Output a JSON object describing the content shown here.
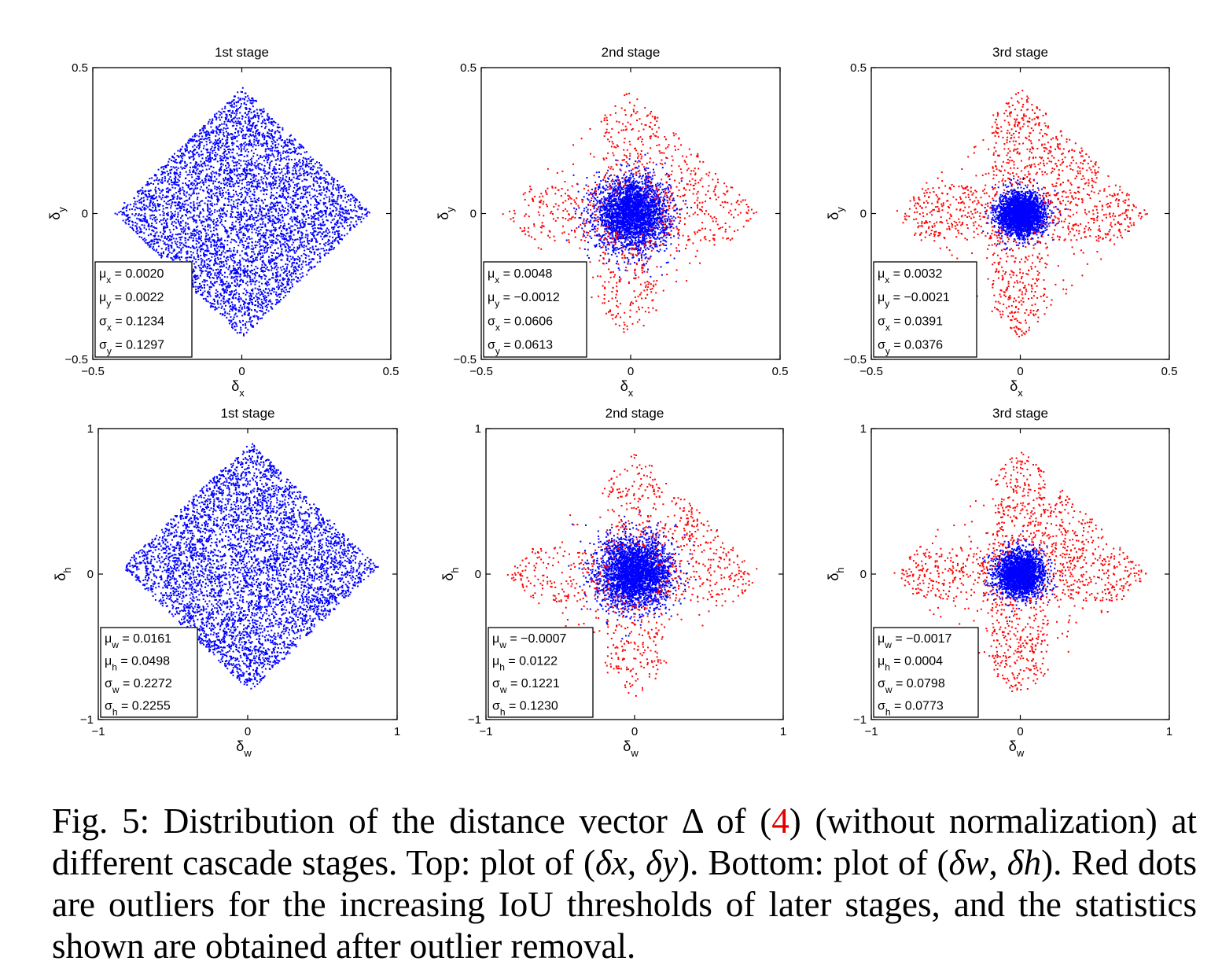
{
  "figure": {
    "colors": {
      "inlier": "#0000ff",
      "outlier": "#ff0000",
      "axes": "#000000",
      "background": "#ffffff"
    },
    "panels": [
      {
        "id": "xy-stage1",
        "title": "1st stage",
        "xlabel_symbol": "δ",
        "xlabel_sub": "x",
        "ylabel_symbol": "δ",
        "ylabel_sub": "y",
        "xlim": [
          -0.5,
          0.5
        ],
        "ylim": [
          -0.5,
          0.5
        ],
        "xticks": [
          "−0.5",
          "0",
          "0.5"
        ],
        "yticks": [
          "0.5",
          "0",
          "−0.5"
        ],
        "stats": [
          {
            "sym": "μ",
            "sub": "x",
            "text": " = 0.0020"
          },
          {
            "sym": "μ",
            "sub": "y",
            "text": " = 0.0022"
          },
          {
            "sym": "σ",
            "sub": "x",
            "text": " = 0.1234"
          },
          {
            "sym": "σ",
            "sub": "y",
            "text": " = 0.1297"
          }
        ]
      },
      {
        "id": "xy-stage2",
        "title": "2nd stage",
        "xlabel_symbol": "δ",
        "xlabel_sub": "x",
        "ylabel_symbol": "δ",
        "ylabel_sub": "y",
        "xlim": [
          -0.5,
          0.5
        ],
        "ylim": [
          -0.5,
          0.5
        ],
        "xticks": [
          "−0.5",
          "0",
          "0.5"
        ],
        "yticks": [
          "0.5",
          "0",
          "−0.5"
        ],
        "stats": [
          {
            "sym": "μ",
            "sub": "x",
            "text": " = 0.0048"
          },
          {
            "sym": "μ",
            "sub": "y",
            "text": " = −0.0012"
          },
          {
            "sym": "σ",
            "sub": "x",
            "text": " = 0.0606"
          },
          {
            "sym": "σ",
            "sub": "y",
            "text": " = 0.0613"
          }
        ]
      },
      {
        "id": "xy-stage3",
        "title": "3rd stage",
        "xlabel_symbol": "δ",
        "xlabel_sub": "x",
        "ylabel_symbol": "δ",
        "ylabel_sub": "y",
        "xlim": [
          -0.5,
          0.5
        ],
        "ylim": [
          -0.5,
          0.5
        ],
        "xticks": [
          "−0.5",
          "0",
          "0.5"
        ],
        "yticks": [
          "0.5",
          "0",
          "−0.5"
        ],
        "stats": [
          {
            "sym": "μ",
            "sub": "x",
            "text": " = 0.0032"
          },
          {
            "sym": "μ",
            "sub": "y",
            "text": " = −0.0021"
          },
          {
            "sym": "σ",
            "sub": "x",
            "text": " = 0.0391"
          },
          {
            "sym": "σ",
            "sub": "y",
            "text": " = 0.0376"
          }
        ]
      },
      {
        "id": "wh-stage1",
        "title": "1st stage",
        "xlabel_symbol": "δ",
        "xlabel_sub": "w",
        "ylabel_symbol": "δ",
        "ylabel_sub": "h",
        "xlim": [
          -1,
          1
        ],
        "ylim": [
          -1,
          1
        ],
        "xticks": [
          "−1",
          "0",
          "1"
        ],
        "yticks": [
          "1",
          "0",
          "−1"
        ],
        "stats": [
          {
            "sym": "μ",
            "sub": "w",
            "text": " = 0.0161"
          },
          {
            "sym": "μ",
            "sub": "h",
            "text": " = 0.0498"
          },
          {
            "sym": "σ",
            "sub": "w",
            "text": " = 0.2272"
          },
          {
            "sym": "σ",
            "sub": "h",
            "text": " = 0.2255"
          }
        ]
      },
      {
        "id": "wh-stage2",
        "title": "2nd stage",
        "xlabel_symbol": "δ",
        "xlabel_sub": "w",
        "ylabel_symbol": "δ",
        "ylabel_sub": "h",
        "xlim": [
          -1,
          1
        ],
        "ylim": [
          -1,
          1
        ],
        "xticks": [
          "−1",
          "0",
          "1"
        ],
        "yticks": [
          "1",
          "0",
          "−1"
        ],
        "stats": [
          {
            "sym": "μ",
            "sub": "w",
            "text": " = −0.0007"
          },
          {
            "sym": "μ",
            "sub": "h",
            "text": " = 0.0122"
          },
          {
            "sym": "σ",
            "sub": "w",
            "text": " = 0.1221"
          },
          {
            "sym": "σ",
            "sub": "h",
            "text": " = 0.1230"
          }
        ]
      },
      {
        "id": "wh-stage3",
        "title": "3rd stage",
        "xlabel_symbol": "δ",
        "xlabel_sub": "w",
        "ylabel_symbol": "δ",
        "ylabel_sub": "h",
        "xlim": [
          -1,
          1
        ],
        "ylim": [
          -1,
          1
        ],
        "xticks": [
          "−1",
          "0",
          "1"
        ],
        "yticks": [
          "1",
          "0",
          "−1"
        ],
        "stats": [
          {
            "sym": "μ",
            "sub": "w",
            "text": " = −0.0017"
          },
          {
            "sym": "μ",
            "sub": "h",
            "text": " = 0.0004"
          },
          {
            "sym": "σ",
            "sub": "w",
            "text": " = 0.0798"
          },
          {
            "sym": "σ",
            "sub": "h",
            "text": " = 0.0773"
          }
        ]
      }
    ]
  },
  "chart_data": [
    {
      "type": "scatter",
      "title": "1st stage",
      "xlabel": "δx",
      "ylabel": "δy",
      "xlim": [
        -0.5,
        0.5
      ],
      "ylim": [
        -0.5,
        0.5
      ],
      "grid": false,
      "series": [
        {
          "color": "#0000ff",
          "distribution": "diamond-shaped cloud",
          "count_approx": 5000,
          "x_range": [
            -0.42,
            0.42
          ],
          "y_range": [
            -0.47,
            0.46
          ],
          "mean_x": 0.002,
          "mean_y": 0.0022,
          "std_x": 0.1234,
          "std_y": 0.1297
        }
      ]
    },
    {
      "type": "scatter",
      "title": "2nd stage",
      "xlabel": "δx",
      "ylabel": "δy",
      "xlim": [
        -0.5,
        0.5
      ],
      "ylim": [
        -0.5,
        0.5
      ],
      "grid": false,
      "series": [
        {
          "color": "#0000ff",
          "role": "inliers",
          "count_approx": 3000,
          "mean_x": 0.0048,
          "mean_y": -0.0012,
          "std_x": 0.0606,
          "std_y": 0.0613
        },
        {
          "color": "#ff0000",
          "role": "outliers",
          "count_approx": 900,
          "x_range": [
            -0.45,
            0.45
          ],
          "y_range": [
            -0.43,
            0.39
          ]
        }
      ]
    },
    {
      "type": "scatter",
      "title": "3rd stage",
      "xlabel": "δx",
      "ylabel": "δy",
      "xlim": [
        -0.5,
        0.5
      ],
      "ylim": [
        -0.5,
        0.5
      ],
      "grid": false,
      "series": [
        {
          "color": "#0000ff",
          "role": "inliers",
          "count_approx": 2500,
          "mean_x": 0.0032,
          "mean_y": -0.0021,
          "std_x": 0.0391,
          "std_y": 0.0376
        },
        {
          "color": "#ff0000",
          "role": "outliers",
          "count_approx": 1300,
          "x_range": [
            -0.45,
            0.45
          ],
          "y_range": [
            -0.45,
            0.46
          ]
        }
      ]
    },
    {
      "type": "scatter",
      "title": "1st stage",
      "xlabel": "δw",
      "ylabel": "δh",
      "xlim": [
        -1,
        1
      ],
      "ylim": [
        -1,
        1
      ],
      "grid": false,
      "series": [
        {
          "color": "#0000ff",
          "distribution": "diamond-shaped cloud",
          "count_approx": 5000,
          "x_range": [
            -0.65,
            0.65
          ],
          "y_range": [
            -0.67,
            0.68
          ],
          "mean_x": 0.0161,
          "mean_y": 0.0498,
          "std_x": 0.2272,
          "std_y": 0.2255
        }
      ]
    },
    {
      "type": "scatter",
      "title": "2nd stage",
      "xlabel": "δw",
      "ylabel": "δh",
      "xlim": [
        -1,
        1
      ],
      "ylim": [
        -1,
        1
      ],
      "grid": false,
      "series": [
        {
          "color": "#0000ff",
          "role": "inliers",
          "count_approx": 3000,
          "mean_x": -0.0007,
          "mean_y": 0.0122,
          "std_x": 0.1221,
          "std_y": 0.123
        },
        {
          "color": "#ff0000",
          "role": "outliers",
          "count_approx": 900,
          "x_range": [
            -0.65,
            0.65
          ],
          "y_range": [
            -0.65,
            0.65
          ]
        }
      ]
    },
    {
      "type": "scatter",
      "title": "3rd stage",
      "xlabel": "δw",
      "ylabel": "δh",
      "xlim": [
        -1,
        1
      ],
      "ylim": [
        -1,
        1
      ],
      "grid": false,
      "series": [
        {
          "color": "#0000ff",
          "role": "inliers",
          "count_approx": 2500,
          "mean_x": -0.0017,
          "mean_y": 0.0004,
          "std_x": 0.0798,
          "std_y": 0.0773
        },
        {
          "color": "#ff0000",
          "role": "outliers",
          "count_approx": 1300,
          "x_range": [
            -0.65,
            0.65
          ],
          "y_range": [
            -0.65,
            0.65
          ]
        }
      ]
    }
  ],
  "caption": {
    "part1": "Fig. 5: Distribution of the distance vector Δ of (",
    "ref": "4",
    "part2": ") (without normalization) at different cascade stages. Top: plot of (",
    "dx": "δx",
    "comma": ", ",
    "dy": "δy",
    "part3": "). Bottom: plot of (",
    "dw": "δw",
    "dh": "δh",
    "part4": "). Red dots are outliers for the increasing IoU thresholds of later stages, and the statistics shown are obtained after outlier removal."
  }
}
